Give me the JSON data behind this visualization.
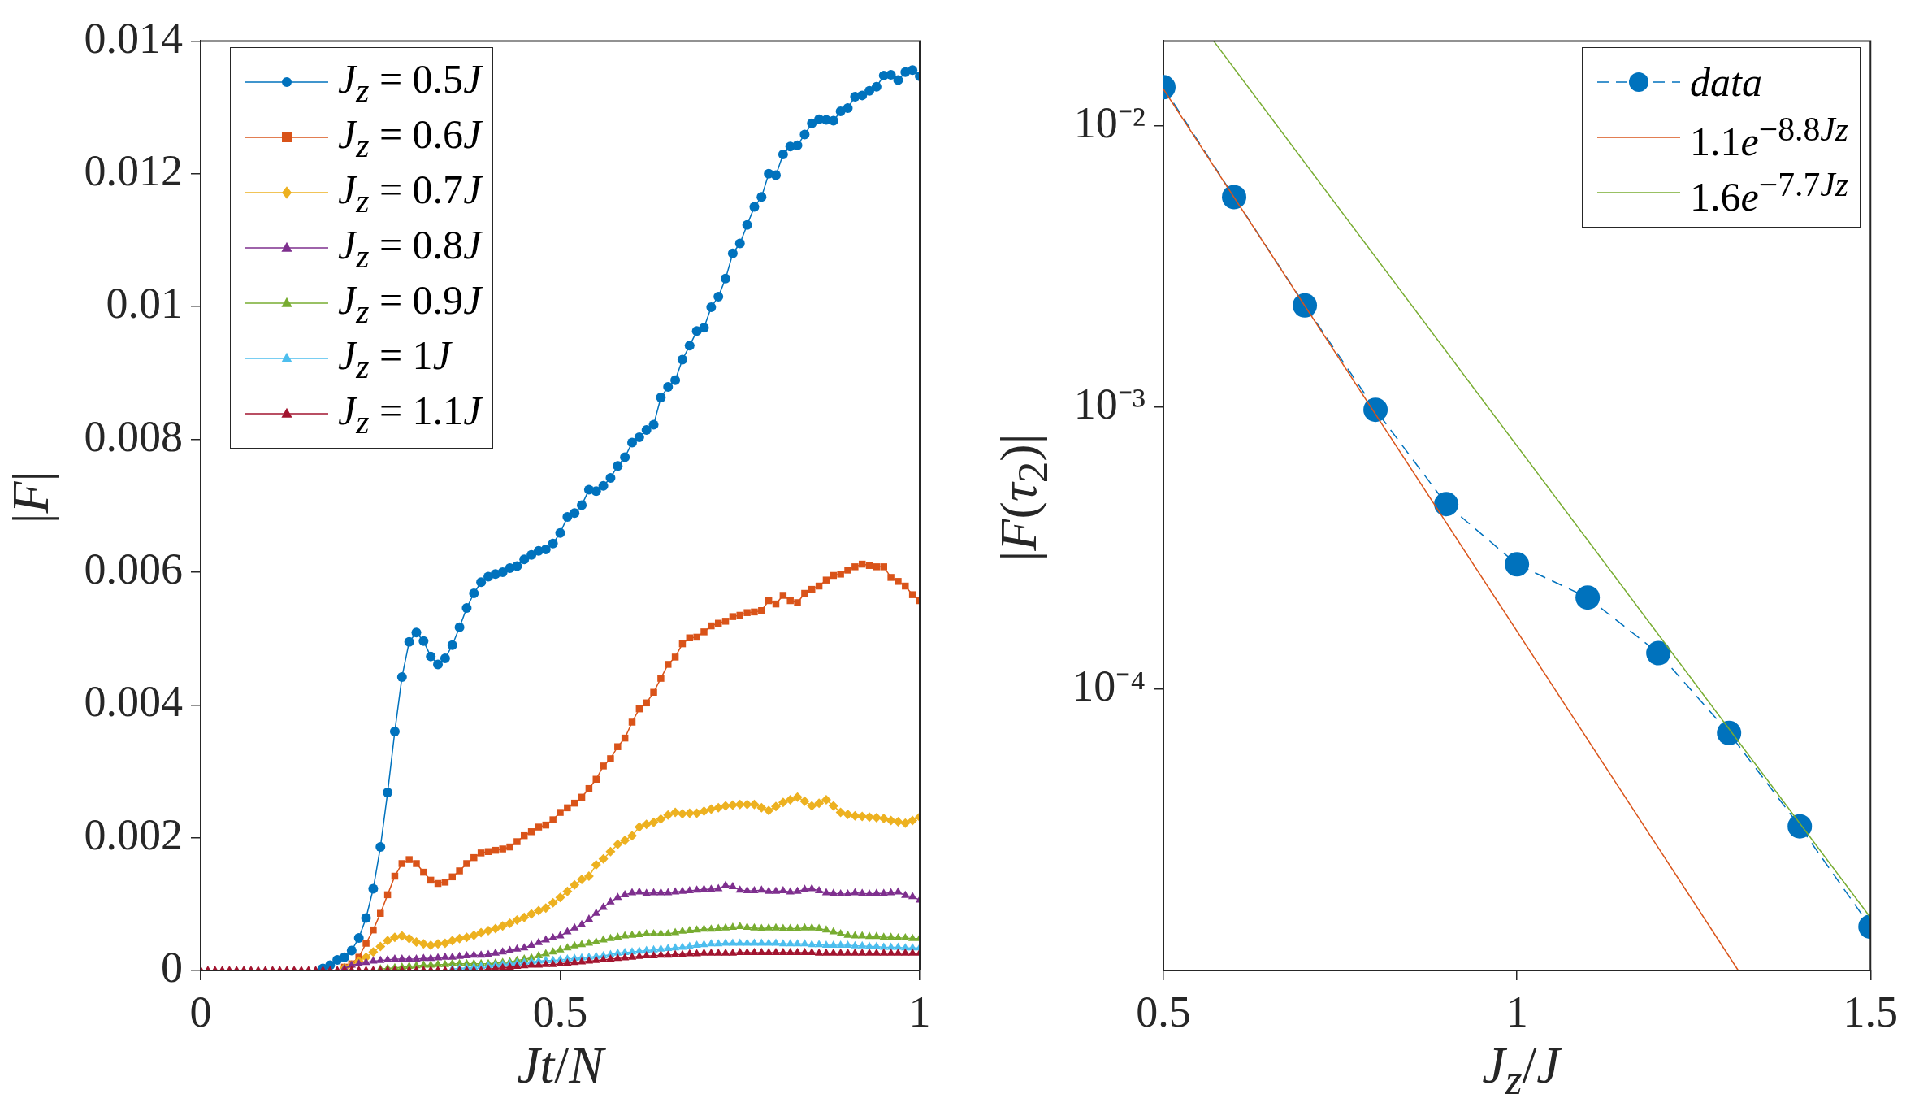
{
  "chart_data": [
    {
      "type": "line",
      "xlabel": "Jt/N",
      "ylabel": "|F|",
      "xlim": [
        0,
        1
      ],
      "xticks": [
        0,
        0.5,
        1
      ],
      "ylim": [
        0,
        0.014
      ],
      "yticks": [
        0,
        0.002,
        0.004,
        0.006,
        0.008,
        0.01,
        0.012,
        0.014
      ],
      "legend": "top left",
      "x": [
        0,
        0.01,
        0.02,
        0.03,
        0.04,
        0.05,
        0.06,
        0.07,
        0.08,
        0.09,
        0.1,
        0.11,
        0.12,
        0.13,
        0.14,
        0.15,
        0.16,
        0.17,
        0.18,
        0.19,
        0.2,
        0.21,
        0.22,
        0.23,
        0.24,
        0.25,
        0.26,
        0.27,
        0.28,
        0.29,
        0.3,
        0.31,
        0.32,
        0.33,
        0.34,
        0.35,
        0.36,
        0.37,
        0.38,
        0.39,
        0.4,
        0.41,
        0.42,
        0.43,
        0.44,
        0.45,
        0.46,
        0.47,
        0.48,
        0.49,
        0.5,
        0.51,
        0.52,
        0.53,
        0.54,
        0.55,
        0.56,
        0.57,
        0.58,
        0.59,
        0.6,
        0.61,
        0.62,
        0.63,
        0.64,
        0.65,
        0.66,
        0.67,
        0.68,
        0.69,
        0.7,
        0.71,
        0.72,
        0.73,
        0.74,
        0.75,
        0.76,
        0.77,
        0.78,
        0.79,
        0.8,
        0.81,
        0.82,
        0.83,
        0.84,
        0.85,
        0.86,
        0.87,
        0.88,
        0.89,
        0.9,
        0.91,
        0.92,
        0.93,
        0.94,
        0.95,
        0.96,
        0.97,
        0.98,
        0.99,
        1
      ],
      "series": [
        {
          "name": "J$_{z}$ = 0.5J",
          "color": "#0072bd",
          "marker": "circle",
          "values": [
            null,
            null,
            null,
            null,
            null,
            null,
            null,
            null,
            null,
            null,
            null,
            null,
            null,
            null,
            null,
            null,
            null,
            3e-05,
            8e-05,
            0.00016,
            0.0002,
            0.0003,
            0.00049,
            0.00079,
            0.00123,
            0.00186,
            0.00268,
            0.0036,
            0.00442,
            0.00495,
            0.00509,
            0.00496,
            0.00473,
            0.00461,
            0.0047,
            0.0049,
            0.00517,
            0.00546,
            0.00568,
            0.00585,
            0.00593,
            0.00597,
            0.006,
            0.00606,
            0.00609,
            0.00619,
            0.00626,
            0.00632,
            0.00634,
            0.00643,
            0.00659,
            0.00683,
            0.00689,
            0.00701,
            0.00724,
            0.00722,
            0.0073,
            0.00742,
            0.0076,
            0.00773,
            0.00795,
            0.00803,
            0.00814,
            0.00822,
            0.00863,
            0.00879,
            0.00889,
            0.0092,
            0.00941,
            0.00963,
            0.00968,
            0.00999,
            0.01015,
            0.01042,
            0.0108,
            0.01095,
            0.01123,
            0.0115,
            0.01165,
            0.012,
            0.01198,
            0.01229,
            0.01241,
            0.01243,
            0.01259,
            0.01276,
            0.01282,
            0.01281,
            0.0128,
            0.01294,
            0.01299,
            0.01316,
            0.01318,
            0.01325,
            0.01331,
            0.01348,
            0.01349,
            0.01341,
            0.01353,
            0.01356,
            0.01347
          ]
        },
        {
          "name": "J$_{z}$ = 0.6J",
          "color": "#d95319",
          "marker": "square",
          "values": [
            null,
            null,
            null,
            null,
            null,
            null,
            null,
            null,
            null,
            null,
            null,
            null,
            null,
            null,
            null,
            null,
            null,
            null,
            null,
            null,
            5e-05,
            0.0001,
            0.0002,
            0.00041,
            0.00061,
            0.00086,
            0.00114,
            0.00142,
            0.00161,
            0.00167,
            0.00161,
            0.00148,
            0.00136,
            0.00131,
            0.00133,
            0.00141,
            0.0015,
            0.00161,
            0.0017,
            0.00177,
            0.00179,
            0.00181,
            0.00183,
            0.00186,
            0.00194,
            0.00203,
            0.00209,
            0.00216,
            0.00219,
            0.00227,
            0.00238,
            0.00245,
            0.00252,
            0.00261,
            0.00274,
            0.00288,
            0.00308,
            0.00319,
            0.00337,
            0.0035,
            0.00374,
            0.00394,
            0.00403,
            0.00419,
            0.0044,
            0.00461,
            0.00472,
            0.00492,
            0.00501,
            0.00502,
            0.0051,
            0.00519,
            0.00523,
            0.00526,
            0.00533,
            0.00535,
            0.00539,
            0.0054,
            0.00542,
            0.00557,
            0.00552,
            0.00565,
            0.00557,
            0.00554,
            0.00568,
            0.00574,
            0.00579,
            0.00588,
            0.00595,
            0.00597,
            0.00603,
            0.00608,
            0.00612,
            0.0061,
            0.00608,
            0.00608,
            0.00592,
            0.00586,
            0.00579,
            0.00566,
            0.00557
          ]
        },
        {
          "name": "J$_{z}$ = 0.7J",
          "color": "#edb120",
          "marker": "diamond",
          "values": [
            null,
            null,
            null,
            null,
            null,
            null,
            null,
            null,
            null,
            null,
            null,
            null,
            null,
            null,
            null,
            null,
            null,
            null,
            null,
            null,
            4e-05,
            8e-05,
            0.00014,
            0.0002,
            0.00028,
            0.00036,
            0.00045,
            0.0005,
            0.00052,
            0.00048,
            0.00043,
            0.0004,
            0.00038,
            0.0004,
            0.00041,
            0.00045,
            0.00048,
            0.0005,
            0.00053,
            0.00057,
            0.0006,
            0.00063,
            0.00067,
            0.00071,
            0.00076,
            0.0008,
            0.00085,
            0.0009,
            0.00094,
            0.00102,
            0.0011,
            0.00119,
            0.00129,
            0.00137,
            0.00142,
            0.00159,
            0.00168,
            0.00179,
            0.0019,
            0.00196,
            0.00203,
            0.00216,
            0.0022,
            0.00223,
            0.00228,
            0.00234,
            0.00238,
            0.00236,
            0.00237,
            0.00237,
            0.0024,
            0.00243,
            0.00245,
            0.00248,
            0.00249,
            0.0025,
            0.0025,
            0.0025,
            0.00245,
            0.00241,
            0.00247,
            0.00253,
            0.00257,
            0.00261,
            0.00255,
            0.00248,
            0.00252,
            0.00257,
            0.00248,
            0.00238,
            0.00235,
            0.00233,
            0.00232,
            0.00231,
            0.0023,
            0.00229,
            0.00226,
            0.00224,
            0.00222,
            0.00226,
            0.00231
          ]
        },
        {
          "name": "J$_{z}$ = 0.8J",
          "color": "#7e2f8e",
          "marker": "triangle",
          "values": [
            null,
            null,
            null,
            null,
            null,
            null,
            null,
            null,
            null,
            null,
            null,
            null,
            null,
            null,
            null,
            null,
            null,
            null,
            null,
            null,
            3e-05,
            8e-05,
            0.0001,
            0.00012,
            0.00014,
            0.00015,
            0.00016,
            0.00017,
            0.00017,
            0.00017,
            0.00017,
            0.00018,
            0.00018,
            0.00019,
            0.0002,
            0.0002,
            0.00021,
            0.00022,
            0.00023,
            0.00023,
            0.00024,
            0.00026,
            0.00028,
            0.0003,
            0.00032,
            0.00034,
            0.00038,
            0.00042,
            0.00046,
            0.00049,
            0.00052,
            0.00058,
            0.00064,
            0.00069,
            0.00077,
            0.00086,
            0.00095,
            0.00103,
            0.0011,
            0.00114,
            0.00117,
            0.00118,
            0.00116,
            0.00117,
            0.00117,
            0.00117,
            0.00118,
            0.00119,
            0.0012,
            0.00121,
            0.00122,
            0.00122,
            0.00123,
            0.00128,
            0.00126,
            0.00121,
            0.0012,
            0.0012,
            0.00121,
            0.00119,
            0.00119,
            0.0012,
            0.00118,
            0.00119,
            0.00122,
            0.00123,
            0.0012,
            0.00117,
            0.00116,
            0.00115,
            0.00115,
            0.00117,
            0.00116,
            0.00115,
            0.00116,
            0.00116,
            0.00117,
            0.00118,
            0.00113,
            0.00111,
            0.00106
          ]
        },
        {
          "name": "J$_{z}$ = 0.9J",
          "color": "#77ac30",
          "marker": "triangle",
          "values": [
            null,
            null,
            null,
            null,
            null,
            null,
            null,
            null,
            null,
            null,
            null,
            null,
            null,
            null,
            null,
            null,
            null,
            null,
            null,
            null,
            null,
            null,
            null,
            null,
            null,
            2e-05,
            3e-05,
            4e-05,
            5e-05,
            6e-05,
            7e-05,
            8e-05,
            8e-05,
            9e-05,
            9e-05,
            0.0001,
            0.0001,
            0.0001,
            0.0001,
            0.0001,
            0.0001,
            0.00011,
            0.00012,
            0.00013,
            0.00015,
            0.00017,
            0.00019,
            0.00022,
            0.00025,
            0.00028,
            0.00031,
            0.00034,
            0.00037,
            0.00039,
            0.00041,
            0.00043,
            0.00046,
            0.00048,
            0.0005,
            0.00052,
            0.00053,
            0.00054,
            0.00055,
            0.00055,
            0.00055,
            0.00055,
            0.00057,
            0.00059,
            0.0006,
            0.00061,
            0.00062,
            0.00062,
            0.00063,
            0.00064,
            0.00065,
            0.00066,
            0.00065,
            0.00064,
            0.00063,
            0.00064,
            0.00064,
            0.00063,
            0.00063,
            0.00063,
            0.00064,
            0.00064,
            0.00063,
            0.00061,
            0.00058,
            0.00055,
            0.00053,
            0.00052,
            0.00052,
            0.00051,
            0.00051,
            0.0005,
            0.0005,
            0.00049,
            0.00049,
            0.00048,
            0.00048
          ]
        },
        {
          "name": "J$_{z}$ = 1J",
          "color": "#4dbeee",
          "marker": "triangle",
          "values": [
            null,
            null,
            null,
            null,
            null,
            null,
            null,
            null,
            null,
            null,
            null,
            null,
            null,
            null,
            null,
            null,
            null,
            null,
            null,
            null,
            null,
            null,
            null,
            null,
            null,
            null,
            null,
            null,
            null,
            null,
            null,
            null,
            null,
            null,
            null,
            2e-05,
            3e-05,
            4e-05,
            5e-05,
            6e-05,
            7e-05,
            8e-05,
            9e-05,
            0.0001,
            0.00011,
            0.00012,
            0.00013,
            0.00014,
            0.00015,
            0.00015,
            0.00016,
            0.00017,
            0.00018,
            0.00019,
            0.0002,
            0.00021,
            0.00022,
            0.00024,
            0.00026,
            0.00027,
            0.00028,
            0.00029,
            0.0003,
            0.00031,
            0.00032,
            0.00033,
            0.00034,
            0.00035,
            0.00036,
            0.00038,
            0.00039,
            0.0004,
            0.0004,
            0.00041,
            0.00041,
            0.00041,
            0.00041,
            0.00041,
            0.00041,
            0.00041,
            0.00041,
            0.0004,
            0.0004,
            0.0004,
            0.0004,
            0.00039,
            0.00039,
            0.00038,
            0.00038,
            0.00038,
            0.00038,
            0.00037,
            0.00037,
            0.00036,
            0.00036,
            0.00035,
            0.00035,
            0.00035,
            0.00034,
            0.00034,
            0.00034
          ]
        },
        {
          "name": "J$_{z}$ = 1.1J",
          "color": "#a2142f",
          "marker": "triangle",
          "values": [
            0,
            0,
            0,
            0,
            0,
            0,
            0,
            0,
            0,
            0,
            0,
            0,
            0,
            0,
            0,
            0,
            0,
            0,
            0,
            0,
            0,
            0,
            0,
            0,
            0,
            0,
            0,
            0,
            0,
            0,
            0,
            0,
            0,
            0,
            0,
            0,
            0,
            0,
            0,
            0,
            2e-05,
            3e-05,
            4e-05,
            5e-05,
            6e-05,
            7e-05,
            8e-05,
            8e-05,
            9e-05,
            9e-05,
            0.0001,
            0.00011,
            0.00012,
            0.00013,
            0.00014,
            0.00015,
            0.00016,
            0.00017,
            0.00018,
            0.00019,
            0.0002,
            0.00021,
            0.00022,
            0.00022,
            0.00023,
            0.00023,
            0.00024,
            0.00024,
            0.00025,
            0.00025,
            0.00026,
            0.00026,
            0.00026,
            0.00026,
            0.00026,
            0.00027,
            0.00027,
            0.00027,
            0.00027,
            0.00027,
            0.00027,
            0.00027,
            0.00027,
            0.00027,
            0.00027,
            0.00027,
            0.00026,
            0.00026,
            0.00026,
            0.00026,
            0.00026,
            0.00026,
            0.00026,
            0.00026,
            0.00026,
            0.00026,
            0.00026,
            0.00026,
            0.00026,
            0.00026,
            0.00026
          ]
        }
      ]
    },
    {
      "type": "line",
      "xlabel": "J$_{z}$/J",
      "ylabel": "|F(τ$_{2}$)|",
      "log": "y",
      "xlim": [
        0.5,
        1.5
      ],
      "xticks": [
        0.5,
        1,
        1.5
      ],
      "ylim": [
        1e-05,
        0.02
      ],
      "yticks": [
        {
          "value": 0.01,
          "label": "10⁻²"
        },
        {
          "value": 0.001,
          "label": "10⁻³"
        },
        {
          "value": 0.0001,
          "label": "10⁻⁴"
        }
      ],
      "legend": "top right",
      "series": [
        {
          "name": "data",
          "color": "#0072bd",
          "marker": "circle",
          "line_style": "dashed",
          "x": [
            0.5,
            0.6,
            0.7,
            0.8,
            0.9,
            1,
            1.1,
            1.2,
            1.3,
            1.4,
            1.5
          ],
          "values": [
            0.0137,
            0.00558,
            0.0023,
            0.00098,
            0.000453,
            0.000277,
            0.000211,
            0.000134,
            6.97e-05,
            3.25e-05,
            1.43e-05
          ]
        },
        {
          "name": "1.1e$^{−8.8Jz}$",
          "color": "#d95319",
          "marker": "none",
          "line_style": "solid",
          "x": [
            0.5,
            1.313
          ],
          "values": [
            0.0135,
            1e-05
          ]
        },
        {
          "name": "1.6e$^{−7.7Jz}$",
          "color": "#77ac30",
          "marker": "none",
          "line_style": "solid",
          "x": [
            0.571,
            1.5
          ],
          "values": [
            0.02,
            1.54e-05
          ]
        }
      ]
    }
  ]
}
